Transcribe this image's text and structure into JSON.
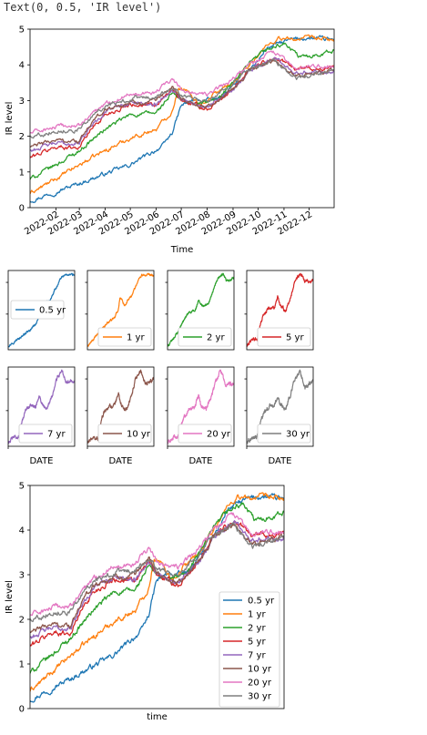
{
  "output_text": "Text(0, 0.5, 'IR level')",
  "colors": {
    "0.5 yr": "#1f77b4",
    "1 yr": "#ff7f0e",
    "2 yr": "#2ca02c",
    "5 yr": "#d62728",
    "7 yr": "#9467bd",
    "10 yr": "#8c564b",
    "20 yr": "#e377c2",
    "30 yr": "#7f7f7f"
  },
  "chart_data": [
    {
      "type": "line",
      "xlabel": "Time",
      "ylabel": "IR level",
      "ylim": [
        0,
        5
      ],
      "yticks": [
        "0",
        "1",
        "2",
        "3",
        "4",
        "5"
      ],
      "xticks": [
        "2022-02",
        "2022-03",
        "2022-04",
        "2022-05",
        "2022-06",
        "2022-07",
        "2022-08",
        "2022-09",
        "2022-10",
        "2022-11",
        "2022-12"
      ],
      "x_range": [
        "2022-01",
        "2022-12-31"
      ],
      "legend": "none",
      "series": [
        {
          "name": "0.5 yr",
          "points": [
            [
              "2022-01-01",
              0.2
            ],
            [
              "2022-02-01",
              0.45
            ],
            [
              "2022-03-01",
              0.68
            ],
            [
              "2022-04-01",
              0.95
            ],
            [
              "2022-05-01",
              1.2
            ],
            [
              "2022-05-20",
              1.45
            ],
            [
              "2022-06-10",
              1.75
            ],
            [
              "2022-06-20",
              2.1
            ],
            [
              "2022-07-01",
              2.85
            ],
            [
              "2022-07-15",
              3.0
            ],
            [
              "2022-08-01",
              3.0
            ],
            [
              "2022-08-15",
              3.05
            ],
            [
              "2022-09-01",
              3.4
            ],
            [
              "2022-09-15",
              3.8
            ],
            [
              "2022-10-01",
              4.1
            ],
            [
              "2022-10-10",
              4.45
            ],
            [
              "2022-10-25",
              4.6
            ],
            [
              "2022-11-10",
              4.7
            ],
            [
              "2022-11-25",
              4.75
            ],
            [
              "2022-12-31",
              4.7
            ]
          ]
        },
        {
          "name": "1 yr",
          "points": [
            [
              "2022-01-01",
              0.4
            ],
            [
              "2022-02-01",
              0.8
            ],
            [
              "2022-03-01",
              1.2
            ],
            [
              "2022-04-01",
              1.6
            ],
            [
              "2022-05-01",
              1.95
            ],
            [
              "2022-06-01",
              2.2
            ],
            [
              "2022-06-20",
              2.7
            ],
            [
              "2022-06-28",
              3.4
            ],
            [
              "2022-07-10",
              3.2
            ],
            [
              "2022-07-25",
              2.9
            ],
            [
              "2022-08-10",
              3.2
            ],
            [
              "2022-09-01",
              3.5
            ],
            [
              "2022-09-20",
              4.0
            ],
            [
              "2022-10-10",
              4.5
            ],
            [
              "2022-10-25",
              4.75
            ],
            [
              "2022-11-10",
              4.7
            ],
            [
              "2022-11-25",
              4.75
            ],
            [
              "2022-12-31",
              4.7
            ]
          ]
        },
        {
          "name": "2 yr",
          "points": [
            [
              "2022-01-01",
              0.8
            ],
            [
              "2022-02-01",
              1.2
            ],
            [
              "2022-03-01",
              1.6
            ],
            [
              "2022-04-01",
              2.2
            ],
            [
              "2022-05-01",
              2.6
            ],
            [
              "2022-06-01",
              2.65
            ],
            [
              "2022-06-20",
              3.2
            ],
            [
              "2022-07-01",
              3.0
            ],
            [
              "2022-07-20",
              2.9
            ],
            [
              "2022-08-10",
              3.0
            ],
            [
              "2022-09-01",
              3.5
            ],
            [
              "2022-09-20",
              4.0
            ],
            [
              "2022-10-10",
              4.4
            ],
            [
              "2022-11-01",
              4.6
            ],
            [
              "2022-11-20",
              4.2
            ],
            [
              "2022-12-31",
              4.4
            ]
          ]
        },
        {
          "name": "5 yr",
          "points": [
            [
              "2022-01-01",
              1.4
            ],
            [
              "2022-02-01",
              1.7
            ],
            [
              "2022-03-01",
              1.7
            ],
            [
              "2022-03-15",
              2.2
            ],
            [
              "2022-04-01",
              2.6
            ],
            [
              "2022-05-01",
              2.9
            ],
            [
              "2022-06-01",
              2.85
            ],
            [
              "2022-06-20",
              3.3
            ],
            [
              "2022-07-01",
              3.0
            ],
            [
              "2022-08-01",
              2.75
            ],
            [
              "2022-09-01",
              3.3
            ],
            [
              "2022-09-20",
              3.9
            ],
            [
              "2022-10-20",
              4.2
            ],
            [
              "2022-11-15",
              3.9
            ],
            [
              "2022-12-31",
              3.9
            ]
          ]
        },
        {
          "name": "7 yr",
          "points": [
            [
              "2022-01-01",
              1.6
            ],
            [
              "2022-02-01",
              1.8
            ],
            [
              "2022-03-01",
              1.8
            ],
            [
              "2022-03-15",
              2.3
            ],
            [
              "2022-04-01",
              2.7
            ],
            [
              "2022-05-01",
              2.95
            ],
            [
              "2022-06-01",
              2.9
            ],
            [
              "2022-06-20",
              3.35
            ],
            [
              "2022-07-01",
              3.05
            ],
            [
              "2022-08-01",
              2.8
            ],
            [
              "2022-09-01",
              3.3
            ],
            [
              "2022-09-20",
              3.85
            ],
            [
              "2022-10-20",
              4.2
            ],
            [
              "2022-11-15",
              3.8
            ],
            [
              "2022-12-31",
              3.85
            ]
          ]
        },
        {
          "name": "10 yr",
          "points": [
            [
              "2022-01-01",
              1.7
            ],
            [
              "2022-02-01",
              1.9
            ],
            [
              "2022-03-01",
              1.85
            ],
            [
              "2022-03-15",
              2.35
            ],
            [
              "2022-04-01",
              2.75
            ],
            [
              "2022-05-01",
              2.95
            ],
            [
              "2022-06-01",
              2.95
            ],
            [
              "2022-06-20",
              3.4
            ],
            [
              "2022-07-01",
              3.05
            ],
            [
              "2022-08-01",
              2.8
            ],
            [
              "2022-09-01",
              3.3
            ],
            [
              "2022-09-20",
              3.8
            ],
            [
              "2022-10-20",
              4.15
            ],
            [
              "2022-11-15",
              3.7
            ],
            [
              "2022-12-31",
              3.85
            ]
          ]
        },
        {
          "name": "20 yr",
          "points": [
            [
              "2022-01-01",
              2.1
            ],
            [
              "2022-02-01",
              2.25
            ],
            [
              "2022-03-01",
              2.3
            ],
            [
              "2022-03-15",
              2.6
            ],
            [
              "2022-04-01",
              2.9
            ],
            [
              "2022-05-01",
              3.2
            ],
            [
              "2022-06-01",
              3.25
            ],
            [
              "2022-06-20",
              3.6
            ],
            [
              "2022-07-01",
              3.3
            ],
            [
              "2022-08-01",
              3.15
            ],
            [
              "2022-09-01",
              3.6
            ],
            [
              "2022-09-20",
              4.0
            ],
            [
              "2022-10-20",
              4.35
            ],
            [
              "2022-11-15",
              3.9
            ],
            [
              "2022-12-31",
              4.0
            ]
          ]
        },
        {
          "name": "30 yr",
          "points": [
            [
              "2022-01-01",
              2.0
            ],
            [
              "2022-02-01",
              2.15
            ],
            [
              "2022-03-01",
              2.2
            ],
            [
              "2022-03-15",
              2.5
            ],
            [
              "2022-04-01",
              2.85
            ],
            [
              "2022-05-01",
              3.05
            ],
            [
              "2022-06-01",
              3.1
            ],
            [
              "2022-06-20",
              3.4
            ],
            [
              "2022-07-01",
              3.15
            ],
            [
              "2022-08-01",
              3.0
            ],
            [
              "2022-09-01",
              3.5
            ],
            [
              "2022-09-20",
              3.85
            ],
            [
              "2022-10-20",
              4.15
            ],
            [
              "2022-11-15",
              3.6
            ],
            [
              "2022-12-31",
              3.85
            ]
          ]
        }
      ]
    },
    {
      "type": "line",
      "small_multiples": true,
      "xlabel": "DATE",
      "panels": [
        "0.5 yr",
        "1 yr",
        "2 yr",
        "5 yr",
        "7 yr",
        "10 yr",
        "20 yr",
        "30 yr"
      ],
      "legend": "bottom/left inside each panel"
    },
    {
      "type": "line",
      "xlabel": "time",
      "ylabel": "IR level",
      "ylim": [
        0,
        5
      ],
      "yticks": [
        "0",
        "1",
        "2",
        "3",
        "4",
        "5"
      ],
      "legend": "bottom-right",
      "legend_entries": [
        "0.5 yr",
        "1 yr",
        "2 yr",
        "5 yr",
        "7 yr",
        "10 yr",
        "20 yr",
        "30 yr"
      ]
    }
  ]
}
